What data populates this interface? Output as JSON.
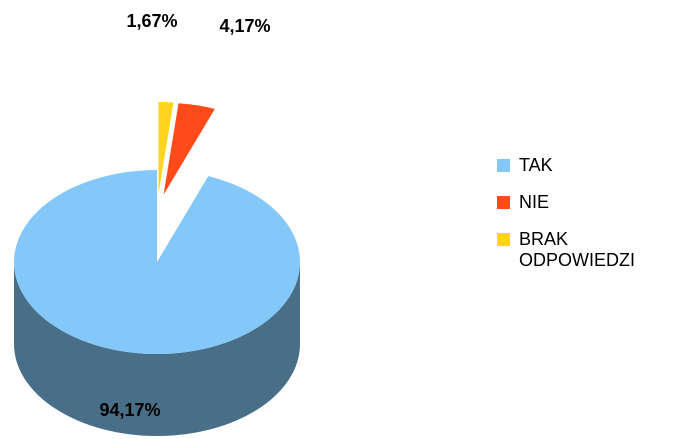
{
  "chart_data": {
    "type": "pie",
    "categories": [
      "TAK",
      "NIE",
      "BRAK ODPOWIEDZI"
    ],
    "values": [
      94.17,
      4.17,
      1.67
    ],
    "value_labels": [
      "94,17%",
      "4,17%",
      "1,67%"
    ],
    "colors": [
      "#83c8f8",
      "#ff4a1a",
      "#ffd320"
    ],
    "legend": "right"
  }
}
